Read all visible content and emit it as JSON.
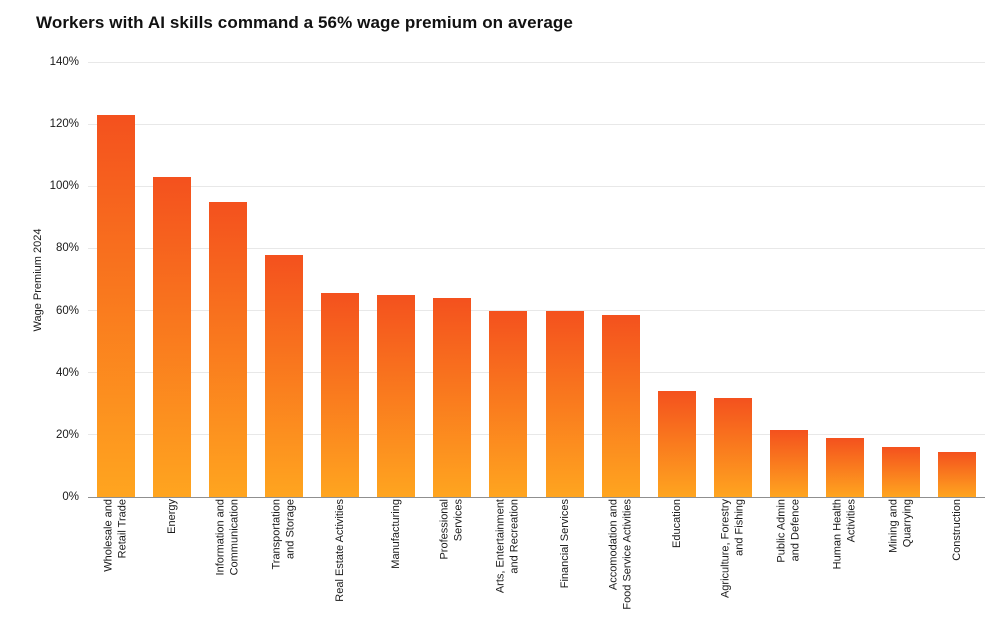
{
  "page": {
    "background": "#ffffff"
  },
  "chart_data": {
    "type": "bar",
    "title": "Workers with AI skills command a 56% wage premium on average",
    "ylabel": "Wage Premium 2024",
    "xlabel": "",
    "ylim": [
      0,
      140
    ],
    "ytick_values": [
      0,
      20,
      40,
      60,
      80,
      100,
      120,
      140
    ],
    "ytick_labels": [
      "0%",
      "20%",
      "40%",
      "60%",
      "80%",
      "100%",
      "120%",
      "140%"
    ],
    "grid": true,
    "legend": false,
    "bar_color_top": "#f4511e",
    "bar_color_bottom": "#ffa51f",
    "gridline_color": "#e8e8e8",
    "axis_line_color": "#8f8f8f",
    "categories": [
      "Wholesale and\nRetail Trade",
      "Energy",
      "Information and\nCommunication",
      "Transportation\nand Storage",
      "Real Estate Activities",
      "Manufacturing",
      "Professional\nServices",
      "Arts, Entertainment\nand Recreation",
      "Financial Services",
      "Accomodation and\nFood Service Activities",
      "Education",
      "Agriculture, Forestry\nand Fishing",
      "Public Admin\nand Defence",
      "Human Health\nActivities",
      "Mining and\nQuarrying",
      "Construction"
    ],
    "values": [
      123,
      103,
      95,
      78,
      65.5,
      65,
      64,
      60,
      60,
      58.5,
      34,
      32,
      21.5,
      19,
      16,
      14.5
    ]
  }
}
